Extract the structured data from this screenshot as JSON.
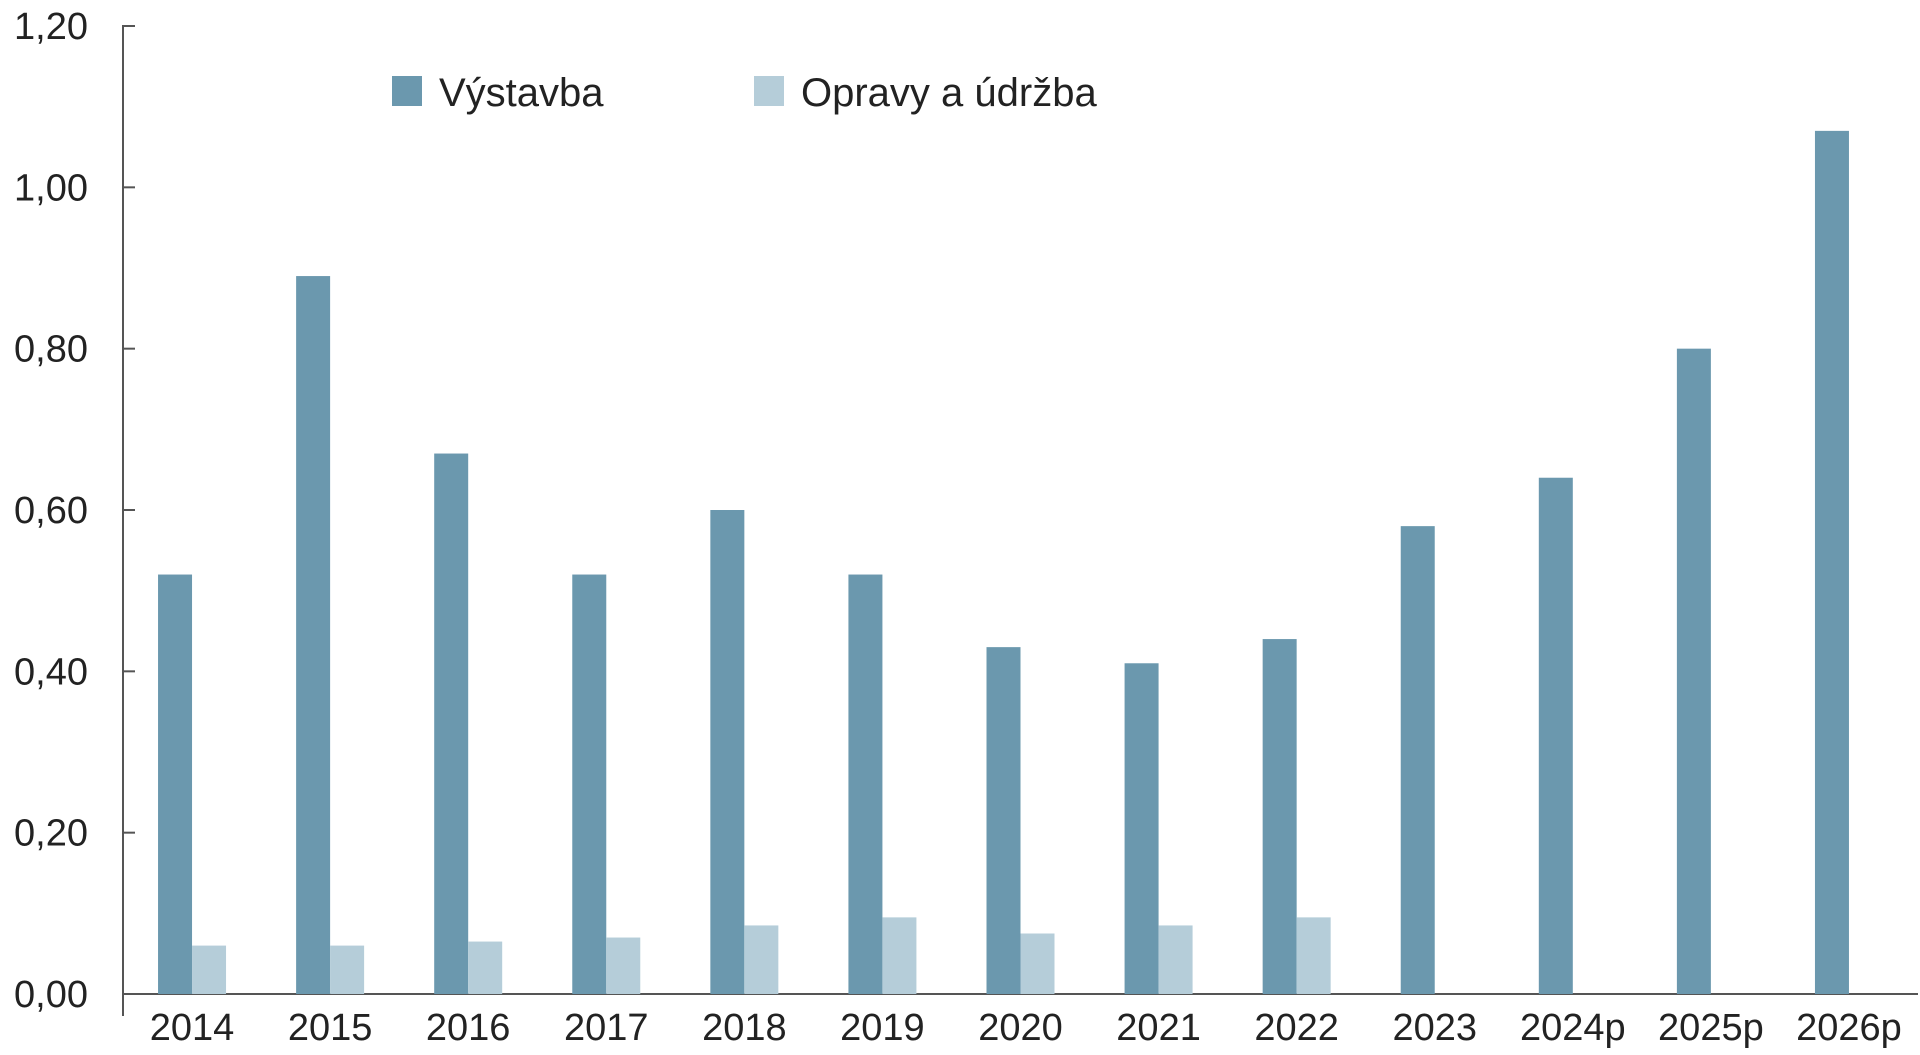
{
  "chart_data": {
    "type": "bar",
    "title": "",
    "xlabel": "",
    "ylabel": "",
    "ylim": [
      0,
      1.2
    ],
    "y_ticks": [
      "0,00",
      "0,20",
      "0,40",
      "0,60",
      "0,80",
      "1,00",
      "1,20"
    ],
    "y_tick_values": [
      0,
      0.2,
      0.4,
      0.6,
      0.8,
      1.0,
      1.2
    ],
    "categories": [
      "2014",
      "2015",
      "2016",
      "2017",
      "2018",
      "2019",
      "2020",
      "2021",
      "2022",
      "2023",
      "2024p",
      "2025p",
      "2026p"
    ],
    "series": [
      {
        "name": "Výstavba",
        "color": "#6b98ae",
        "values": [
          0.52,
          0.89,
          0.67,
          0.52,
          0.6,
          0.52,
          0.43,
          0.41,
          0.44,
          0.58,
          0.64,
          0.8,
          1.07
        ]
      },
      {
        "name": "Opravy a údržba",
        "color": "#b5cdd9",
        "values": [
          0.06,
          0.06,
          0.065,
          0.07,
          0.085,
          0.095,
          0.075,
          0.085,
          0.095,
          null,
          null,
          null,
          null
        ]
      }
    ],
    "legend_position": "top-left",
    "grid": false
  }
}
